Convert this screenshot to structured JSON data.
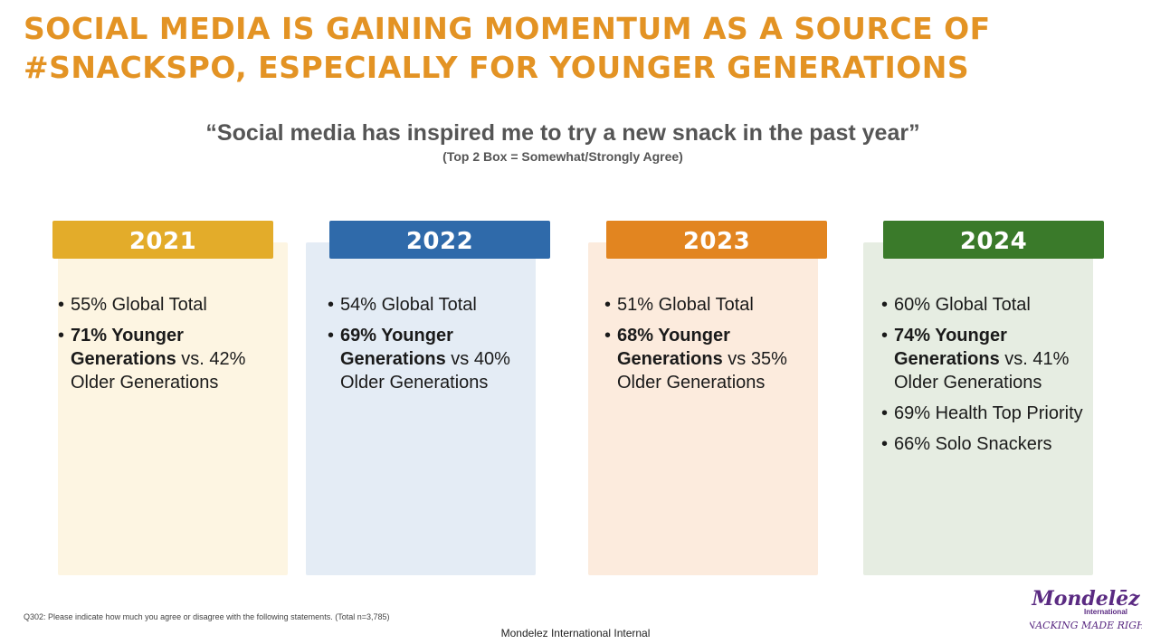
{
  "title": "SOCIAL MEDIA IS GAINING MOMENTUM AS A SOURCE OF #SNACKSPO, ESPECIALLY FOR YOUNGER GENERATIONS",
  "quote": "“Social media has inspired me to try a new snack in the past year”",
  "quote_sub": "(Top 2 Box = Somewhat/Strongly Agree)",
  "colors": {
    "title": "#e39324",
    "y2021": "#e3ac2a",
    "y2022": "#2f6aaa",
    "y2023": "#e28520",
    "y2024": "#3a7a2a"
  },
  "cards": [
    {
      "year": "2021",
      "items": [
        {
          "plain": "55% Global Total"
        },
        {
          "bold": "71% Younger Generations",
          "rest": " vs. 42% Older Generations"
        }
      ]
    },
    {
      "year": "2022",
      "items": [
        {
          "plain": "54% Global Total"
        },
        {
          "bold": "69% Younger Generations",
          "rest": " vs 40% Older Generations"
        }
      ]
    },
    {
      "year": "2023",
      "items": [
        {
          "plain": "51% Global Total"
        },
        {
          "bold": "68% Younger Generations",
          "rest": " vs 35% Older Generations"
        }
      ]
    },
    {
      "year": "2024",
      "items": [
        {
          "plain": "60% Global Total"
        },
        {
          "bold": "74% Younger Generations",
          "rest": " vs. 41% Older Generations"
        },
        {
          "plain": "69% Health Top Priority"
        },
        {
          "plain": "66% Solo Snackers"
        }
      ]
    }
  ],
  "footnote": "Q302: Please indicate how much you agree or disagree with the following statements. (Total n=3,785)",
  "internal_label": "Mondelez International Internal",
  "logo": {
    "brand": "Mondelēz",
    "sub": "International",
    "tagline": "SNACKING MADE RIGHT"
  }
}
